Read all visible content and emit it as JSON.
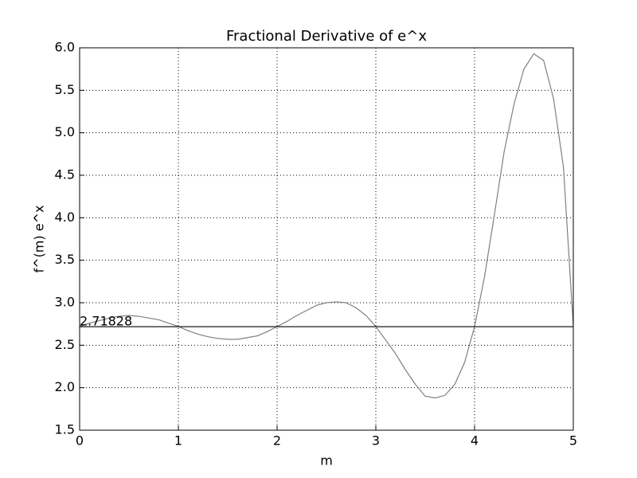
{
  "chart_data": {
    "type": "line",
    "title": "Fractional Derivative of e^x",
    "xlabel": "m",
    "ylabel": "f^(m) e^x",
    "x": [
      0,
      0.1,
      0.2,
      0.3,
      0.4,
      0.5,
      0.6,
      0.7,
      0.8,
      0.9,
      1,
      1.1,
      1.2,
      1.3,
      1.4,
      1.5,
      1.6,
      1.7,
      1.8,
      1.9,
      2,
      2.1,
      2.2,
      2.3,
      2.4,
      2.5,
      2.6,
      2.7,
      2.8,
      2.9,
      3,
      3.1,
      3.2,
      3.3,
      3.4,
      3.5,
      3.6,
      3.7,
      3.8,
      3.9,
      4,
      4.1,
      4.2,
      4.3,
      4.4,
      4.5,
      4.6,
      4.7,
      4.8,
      4.9,
      5
    ],
    "series": [
      {
        "color": "#808080",
        "values": [
          2.72,
          2.76,
          2.79,
          2.82,
          2.84,
          2.85,
          2.84,
          2.82,
          2.8,
          2.76,
          2.72,
          2.67,
          2.63,
          2.6,
          2.58,
          2.57,
          2.57,
          2.59,
          2.61,
          2.66,
          2.72,
          2.78,
          2.85,
          2.91,
          2.97,
          3.0,
          3.01,
          3.0,
          2.94,
          2.85,
          2.72,
          2.56,
          2.4,
          2.21,
          2.04,
          1.9,
          1.88,
          1.91,
          2.04,
          2.3,
          2.72,
          3.3,
          4.03,
          4.78,
          5.34,
          5.75,
          5.93,
          5.85,
          5.4,
          4.6,
          2.72
        ]
      }
    ],
    "hline": 2.71828,
    "hline_color": "#000000",
    "xlim": [
      0,
      5
    ],
    "xticks": [
      0,
      1,
      2,
      3,
      4,
      5
    ],
    "ylim": [
      1.5,
      6.0
    ],
    "yticks": [
      1.5,
      {
        "value": 2.0,
        "label": "2.0"
      },
      2.5,
      {
        "value": 3.0,
        "label": "3.0"
      },
      3.5,
      {
        "value": 4.0,
        "label": "4.0"
      },
      4.5,
      {
        "value": 5.0,
        "label": "5.0"
      },
      5.5,
      {
        "value": 6.0,
        "label": "6.0"
      }
    ],
    "grid": true
  }
}
